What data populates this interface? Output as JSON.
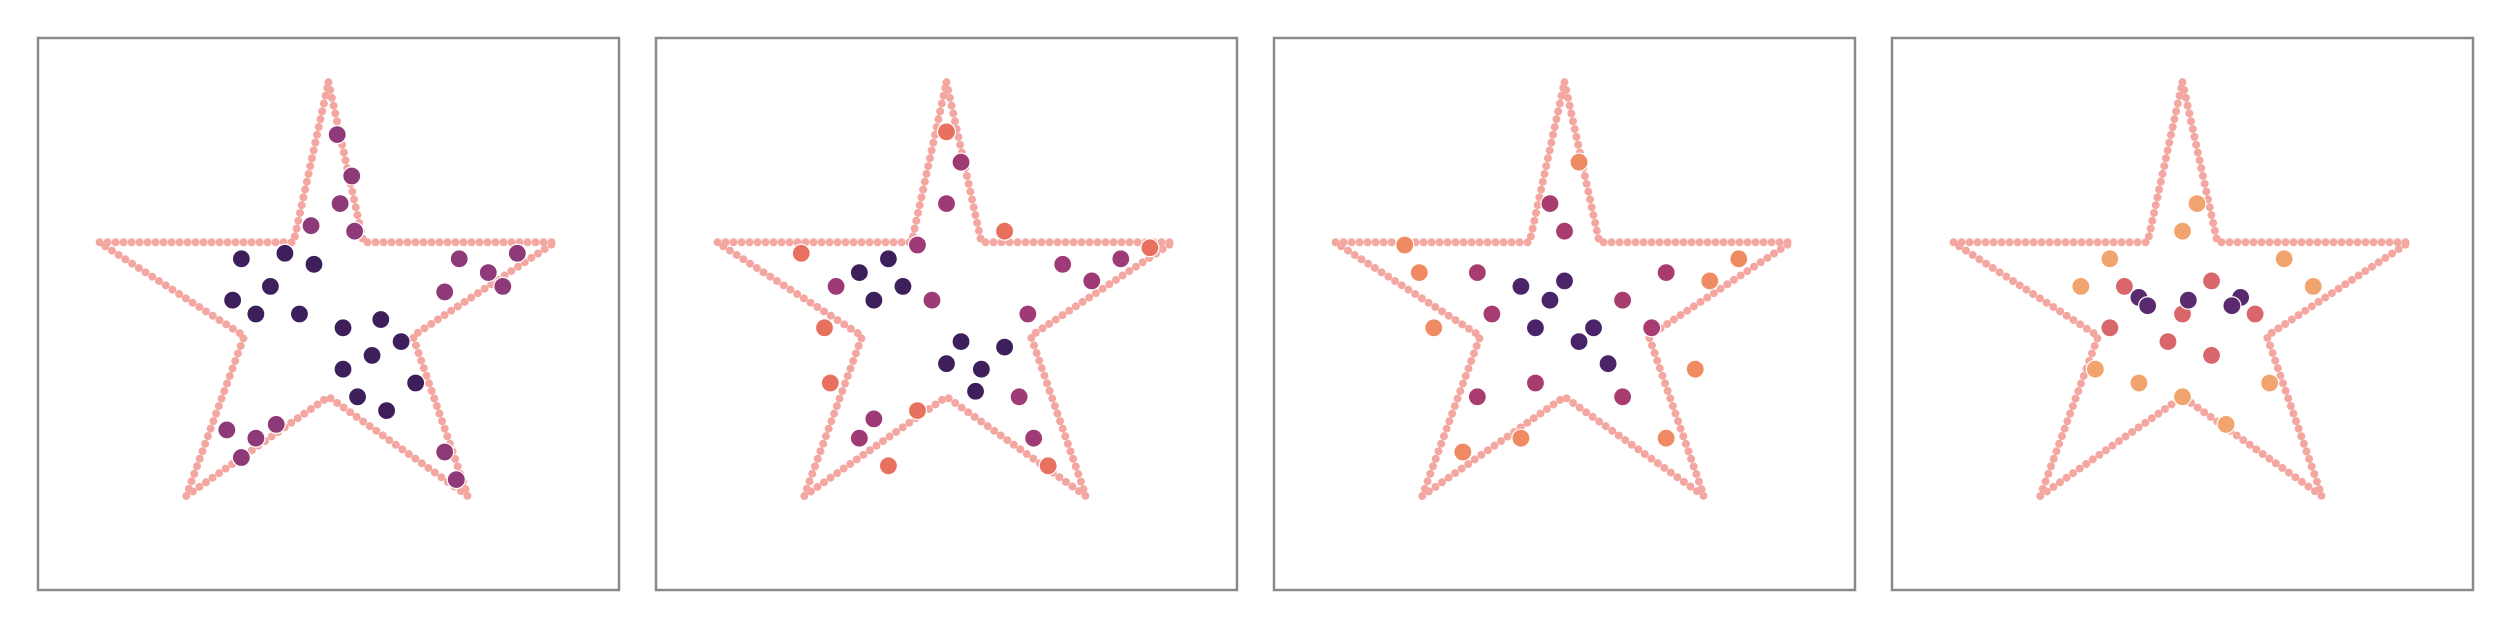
{
  "chart_data": [
    {
      "type": "scatter",
      "xlim": [
        -1,
        1
      ],
      "ylim": [
        -1,
        1
      ],
      "boundary": {
        "color": "#f4a7a1",
        "x": [
          0,
          0.12,
          0.78,
          0.29,
          0.48,
          0,
          -0.49,
          -0.29,
          -0.79,
          -0.12
        ],
        "y": [
          0.84,
          0.26,
          0.26,
          -0.08,
          -0.66,
          -0.3,
          -0.66,
          -0.08,
          0.26,
          0.26
        ]
      },
      "series": [
        {
          "color": "#3d1f5c",
          "x": [
            -0.3,
            -0.2,
            -0.1,
            -0.25,
            -0.05,
            -0.33,
            -0.15,
            0.05,
            0.15,
            0.25,
            0.1,
            0.3,
            0.2,
            0.05,
            0.18
          ],
          "y": [
            0.2,
            0.1,
            0.0,
            0.0,
            0.18,
            0.05,
            0.22,
            -0.05,
            -0.15,
            -0.1,
            -0.3,
            -0.25,
            -0.35,
            -0.2,
            -0.02
          ]
        },
        {
          "color": "#8e3a78",
          "x": [
            0.03,
            0.08,
            0.04,
            0.09,
            -0.06,
            0.45,
            0.55,
            0.65,
            0.4,
            0.6,
            -0.35,
            -0.25,
            -0.3,
            -0.18,
            0.4,
            0.44
          ],
          "y": [
            0.65,
            0.5,
            0.4,
            0.3,
            0.32,
            0.2,
            0.15,
            0.22,
            0.08,
            0.1,
            -0.42,
            -0.45,
            -0.52,
            -0.4,
            -0.5,
            -0.6
          ]
        }
      ]
    },
    {
      "type": "scatter",
      "xlim": [
        -1,
        1
      ],
      "ylim": [
        -1,
        1
      ],
      "boundary": {
        "color": "#f4a7a1",
        "x": [
          0,
          0.12,
          0.78,
          0.29,
          0.48,
          0,
          -0.49,
          -0.29,
          -0.79,
          -0.12
        ],
        "y": [
          0.84,
          0.26,
          0.26,
          -0.08,
          -0.66,
          -0.3,
          -0.66,
          -0.08,
          0.26,
          0.26
        ]
      },
      "series": [
        {
          "color": "#3d1f5c",
          "x": [
            -0.3,
            -0.2,
            -0.15,
            -0.25,
            0.05,
            0.12,
            0.2,
            0.1,
            0.0
          ],
          "y": [
            0.15,
            0.2,
            0.1,
            0.05,
            -0.1,
            -0.2,
            -0.12,
            -0.28,
            -0.18
          ]
        },
        {
          "color": "#9e3a76",
          "x": [
            -0.38,
            -0.1,
            0.0,
            0.05,
            0.4,
            0.5,
            0.6,
            -0.3,
            -0.25,
            0.25,
            0.3,
            -0.05,
            0.28
          ],
          "y": [
            0.1,
            0.25,
            0.4,
            0.55,
            0.18,
            0.12,
            0.2,
            -0.45,
            -0.38,
            -0.3,
            -0.45,
            0.05,
            0.0
          ]
        },
        {
          "color": "#e8705e",
          "x": [
            -0.42,
            -0.4,
            0.0,
            0.7,
            0.35,
            -0.2,
            -0.1,
            0.2,
            -0.5
          ],
          "y": [
            -0.05,
            -0.25,
            0.66,
            0.24,
            -0.55,
            -0.55,
            -0.35,
            0.3,
            0.22
          ]
        }
      ]
    },
    {
      "type": "scatter",
      "xlim": [
        -1,
        1
      ],
      "ylim": [
        -1,
        1
      ],
      "boundary": {
        "color": "#f4a7a1",
        "x": [
          0,
          0.12,
          0.78,
          0.29,
          0.48,
          0,
          -0.49,
          -0.29,
          -0.79,
          -0.12
        ],
        "y": [
          0.84,
          0.26,
          0.26,
          -0.08,
          -0.66,
          -0.3,
          -0.66,
          -0.08,
          0.26,
          0.26
        ]
      },
      "series": [
        {
          "color": "#4a2368",
          "x": [
            -0.15,
            -0.05,
            0.05,
            0.1,
            -0.1,
            0.0,
            0.15
          ],
          "y": [
            0.1,
            0.05,
            -0.1,
            -0.05,
            -0.05,
            0.12,
            -0.18
          ]
        },
        {
          "color": "#a83c70",
          "x": [
            -0.3,
            -0.25,
            0.2,
            0.3,
            0.0,
            -0.1,
            0.2,
            -0.3,
            0.35,
            -0.05
          ],
          "y": [
            0.15,
            0.0,
            0.05,
            -0.05,
            0.3,
            -0.25,
            -0.3,
            -0.3,
            0.15,
            0.4
          ]
        },
        {
          "color": "#ef8a62",
          "x": [
            -0.5,
            -0.45,
            0.5,
            0.05,
            -0.35,
            0.35,
            -0.15,
            0.45,
            -0.55,
            0.6
          ],
          "y": [
            0.15,
            -0.05,
            0.12,
            0.55,
            -0.5,
            -0.45,
            -0.45,
            -0.2,
            0.25,
            0.2
          ]
        }
      ]
    },
    {
      "type": "scatter",
      "xlim": [
        -1,
        1
      ],
      "ylim": [
        -1,
        1
      ],
      "boundary": {
        "color": "#f4a7a1",
        "x": [
          0,
          0.12,
          0.78,
          0.29,
          0.48,
          0,
          -0.49,
          -0.29,
          -0.79,
          -0.12
        ],
        "y": [
          0.84,
          0.26,
          0.26,
          -0.08,
          -0.66,
          -0.3,
          -0.66,
          -0.08,
          0.26,
          0.26
        ]
      },
      "series": [
        {
          "color": "#5a2a6e",
          "x": [
            -0.15,
            -0.12,
            0.2,
            0.17,
            0.02
          ],
          "y": [
            0.06,
            0.03,
            0.06,
            0.03,
            0.05
          ]
        },
        {
          "color": "#d9666a",
          "x": [
            -0.2,
            0.0,
            0.1,
            0.25,
            -0.05,
            0.1,
            -0.25
          ],
          "y": [
            0.1,
            0.0,
            0.12,
            0.0,
            -0.1,
            -0.15,
            -0.05
          ]
        },
        {
          "color": "#f2a46e",
          "x": [
            -0.35,
            0.45,
            0.0,
            0.05,
            -0.3,
            0.3,
            0.0,
            -0.15,
            0.35,
            -0.25,
            0.15
          ],
          "y": [
            0.1,
            0.1,
            0.3,
            0.4,
            -0.2,
            -0.25,
            -0.3,
            -0.25,
            0.2,
            0.2,
            -0.4
          ]
        }
      ]
    }
  ]
}
